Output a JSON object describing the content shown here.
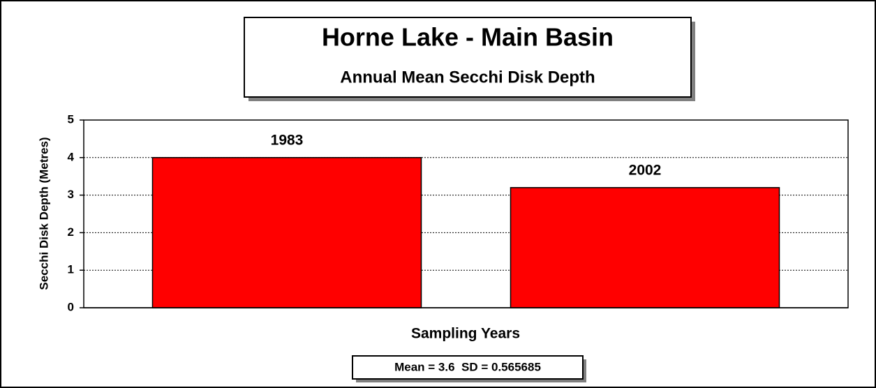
{
  "chart_data": {
    "type": "bar",
    "title": "Horne Lake - Main Basin",
    "subtitle": "Annual Mean Secchi Disk Depth",
    "y_label": "Secchi Disk Depth (Metres)",
    "x_label": "Sampling Years",
    "annotation": "Mean = 3.6  SD = 0.565685",
    "categories": [
      "1983",
      "2002"
    ],
    "values": [
      4.0,
      3.2
    ],
    "color": "#ff0000",
    "ylim": [
      0,
      5
    ],
    "yticks": [
      0,
      1,
      2,
      3,
      4,
      5
    ],
    "grid": true
  }
}
